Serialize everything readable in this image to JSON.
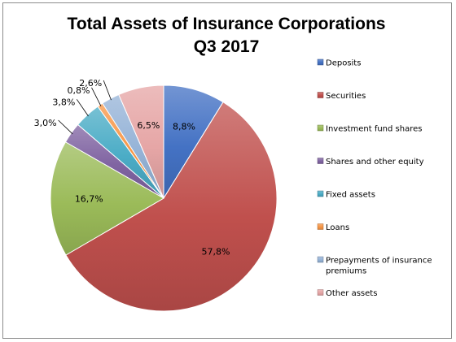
{
  "chart_data": {
    "type": "pie",
    "title": "Total Assets of Insurance Corporations",
    "subtitle": "Q3 2017",
    "categories": [
      "Deposits",
      "Securities",
      "Investment fund shares",
      "Shares and other equity",
      "Fixed assets",
      "Loans",
      "Prepayments of insurance premiums",
      "Other assets"
    ],
    "legend_lines": [
      [
        "Deposits"
      ],
      [
        "Securities"
      ],
      [
        "Investment fund shares"
      ],
      [
        "Shares and other equity"
      ],
      [
        "Fixed assets"
      ],
      [
        "Loans"
      ],
      [
        "Prepayments of insurance",
        "premiums"
      ],
      [
        "Other assets"
      ]
    ],
    "values": [
      8.8,
      57.8,
      16.7,
      3.0,
      3.8,
      0.8,
      2.6,
      6.5
    ],
    "data_labels": [
      "8,8%",
      "57,8%",
      "16,7%",
      "3,0%",
      "3,8%",
      "0,8%",
      "2,6%",
      "6,5%"
    ],
    "colors": [
      "#4472c4",
      "#c0504d",
      "#9bbb59",
      "#8064a2",
      "#4bacc6",
      "#f79646",
      "#95b3d7",
      "#e6a6a6"
    ],
    "legend_position": "right",
    "start_angle_deg": 0,
    "direction": "clockwise"
  }
}
